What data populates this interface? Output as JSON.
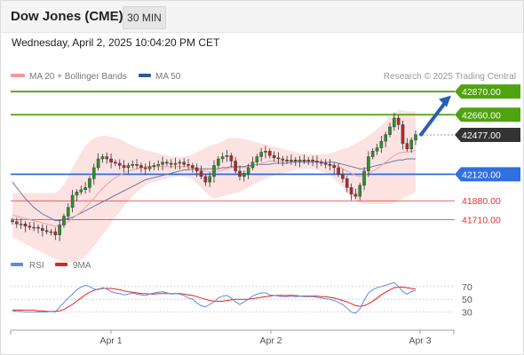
{
  "header": {
    "title": "Dow Jones (CME)",
    "timeframe": "30 MIN"
  },
  "datetime": "Wednesday, April 2, 2025 10:04:20 PM CET",
  "legend": [
    {
      "label": "MA 20 + Bollinger Bands",
      "color": "#f29a9a"
    },
    {
      "label": "MA 50",
      "color": "#2e5b9a"
    }
  ],
  "credit": "Research © 2025 Trading Central",
  "rsi_legend": [
    {
      "label": "RSI",
      "color": "#5b8be0"
    },
    {
      "label": "9MA",
      "color": "#e32222"
    }
  ],
  "colors": {
    "resistance": "#4fa30f",
    "support": "#2f6fe0",
    "support_red": "#e53030",
    "price": "#333333",
    "bull": "#2f8f2f",
    "bear": "#b52a2a",
    "arrow": "#2a5fb0",
    "band": "#fde2e2",
    "ma20": "#f0a0a0",
    "ma50": "#6b78a8"
  },
  "chart_data": [
    {
      "type": "candlestick",
      "title": "",
      "ylim": [
        41560,
        42960
      ],
      "xticks": [
        "Apr 1",
        "Apr 2",
        "Apr 3"
      ],
      "levels": [
        {
          "value": 42870,
          "label": "42870.00",
          "kind": "resistance"
        },
        {
          "value": 42660,
          "label": "42660.00",
          "kind": "resistance"
        },
        {
          "value": 42477,
          "label": "42477.00",
          "kind": "price"
        },
        {
          "value": 42120,
          "label": "42120.00",
          "kind": "support"
        },
        {
          "value": 41880,
          "label": "41880.00",
          "kind": "support_red"
        },
        {
          "value": 41710,
          "label": "41710.00",
          "kind": "support_red"
        }
      ],
      "projection": {
        "from": 42480,
        "to": 42810
      },
      "close": [
        41690,
        41670,
        41670,
        41650,
        41640,
        41640,
        41630,
        41610,
        41600,
        41600,
        41570,
        41660,
        41740,
        41820,
        41930,
        41960,
        41980,
        42000,
        42080,
        42180,
        42260,
        42280,
        42260,
        42230,
        42220,
        42200,
        42180,
        42200,
        42210,
        42200,
        42180,
        42170,
        42190,
        42200,
        42210,
        42230,
        42220,
        42210,
        42220,
        42230,
        42210,
        42200,
        42180,
        42150,
        42100,
        42050,
        42100,
        42200,
        42260,
        42280,
        42290,
        42240,
        42150,
        42100,
        42130,
        42180,
        42230,
        42280,
        42320,
        42330,
        42290,
        42270,
        42260,
        42250,
        42240,
        42250,
        42240,
        42250,
        42240,
        42250,
        42240,
        42230,
        42220,
        42210,
        42200,
        42180,
        42120,
        42080,
        42000,
        41940,
        41920,
        42020,
        42150,
        42280,
        42330,
        42360,
        42420,
        42480,
        42550,
        42630,
        42570,
        42400,
        42350,
        42430,
        42480
      ],
      "ma20": [
        41750,
        41740,
        41730,
        41720,
        41710,
        41700,
        41690,
        41680,
        41670,
        41660,
        41650,
        41660,
        41670,
        41690,
        41720,
        41750,
        41780,
        41820,
        41860,
        41900,
        41950,
        41990,
        42030,
        42060,
        42090,
        42110,
        42130,
        42150,
        42160,
        42170,
        42180,
        42190,
        42190,
        42190,
        42190,
        42190,
        42190,
        42190,
        42190,
        42190,
        42190,
        42190,
        42180,
        42170,
        42160,
        42150,
        42140,
        42140,
        42150,
        42160,
        42170,
        42180,
        42180,
        42180,
        42180,
        42190,
        42200,
        42210,
        42220,
        42230,
        42240,
        42240,
        42240,
        42240,
        42240,
        42240,
        42240,
        42240,
        42240,
        42240,
        42240,
        42240,
        42230,
        42220,
        42210,
        42200,
        42190,
        42170,
        42150,
        42130,
        42110,
        42100,
        42110,
        42130,
        42150,
        42170,
        42200,
        42230,
        42260,
        42290,
        42310,
        42320,
        42320,
        42330,
        42340
      ],
      "bb_upper": [
        41950,
        41950,
        41950,
        41950,
        41950,
        41950,
        41950,
        41950,
        41950,
        41950,
        41950,
        41980,
        42030,
        42100,
        42180,
        42250,
        42320,
        42380,
        42420,
        42450,
        42460,
        42470,
        42470,
        42460,
        42450,
        42440,
        42420,
        42400,
        42380,
        42360,
        42350,
        42340,
        42330,
        42320,
        42310,
        42300,
        42290,
        42280,
        42280,
        42280,
        42280,
        42290,
        42300,
        42320,
        42340,
        42360,
        42380,
        42390,
        42400,
        42420,
        42440,
        42450,
        42450,
        42450,
        42440,
        42430,
        42420,
        42410,
        42400,
        42390,
        42380,
        42370,
        42360,
        42350,
        42340,
        42330,
        42320,
        42310,
        42300,
        42300,
        42300,
        42300,
        42300,
        42300,
        42310,
        42320,
        42340,
        42350,
        42360,
        42380,
        42400,
        42420,
        42440,
        42470,
        42500,
        42530,
        42560,
        42600,
        42640,
        42670,
        42700,
        42700,
        42690,
        42690,
        42690
      ],
      "bb_lower": [
        41550,
        41530,
        41510,
        41490,
        41470,
        41450,
        41430,
        41410,
        41390,
        41370,
        41350,
        41340,
        41330,
        41320,
        41320,
        41330,
        41350,
        41380,
        41420,
        41470,
        41520,
        41570,
        41620,
        41680,
        41730,
        41780,
        41830,
        41880,
        41920,
        41960,
        41990,
        42020,
        42040,
        42050,
        42060,
        42070,
        42080,
        42090,
        42100,
        42100,
        42100,
        42090,
        42070,
        42040,
        42000,
        41960,
        41920,
        41900,
        41910,
        41920,
        41930,
        41940,
        41950,
        41960,
        41980,
        42000,
        42020,
        42040,
        42060,
        42080,
        42100,
        42110,
        42120,
        42130,
        42140,
        42150,
        42160,
        42170,
        42170,
        42170,
        42170,
        42160,
        42150,
        42130,
        42110,
        42080,
        42040,
        42000,
        41960,
        41920,
        41880,
        41860,
        41850,
        41850,
        41850,
        41850,
        41850,
        41850,
        41850,
        41860,
        41880,
        41900,
        41920,
        41940,
        41960
      ],
      "ma50": [
        42050,
        42000,
        41950,
        41900,
        41860,
        41820,
        41790,
        41760,
        41740,
        41720,
        41700,
        41700,
        41710,
        41720,
        41730,
        41750,
        41770,
        41790,
        41810,
        41830,
        41850,
        41870,
        41890,
        41910,
        41930,
        41950,
        41970,
        41990,
        42010,
        42030,
        42050,
        42070,
        42080,
        42090,
        42100,
        42110,
        42120,
        42130,
        42140,
        42150,
        42160,
        42160,
        42170,
        42170,
        42170,
        42170,
        42170,
        42170,
        42170,
        42180,
        42180,
        42190,
        42190,
        42190,
        42190,
        42200,
        42200,
        42210,
        42210,
        42210,
        42210,
        42220,
        42220,
        42220,
        42220,
        42230,
        42230,
        42230,
        42230,
        42230,
        42230,
        42230,
        42230,
        42230,
        42230,
        42230,
        42220,
        42210,
        42200,
        42190,
        42180,
        42170,
        42170,
        42180,
        42190,
        42200,
        42210,
        42220,
        42230,
        42240,
        42250,
        42250,
        42260,
        42260,
        42260
      ]
    },
    {
      "type": "line",
      "title": "",
      "ylim": [
        10,
        85
      ],
      "yticks": [
        "70",
        "50",
        "30"
      ],
      "yticks_values": [
        70,
        50,
        30
      ],
      "series": [
        {
          "name": "RSI",
          "values": [
            32,
            31,
            31,
            30,
            30,
            30,
            30,
            30,
            30,
            31,
            30,
            38,
            45,
            52,
            58,
            65,
            69,
            72,
            70,
            66,
            65,
            68,
            66,
            62,
            60,
            59,
            57,
            58,
            60,
            58,
            57,
            56,
            58,
            60,
            61,
            62,
            60,
            58,
            59,
            58,
            56,
            52,
            50,
            44,
            40,
            38,
            42,
            46,
            52,
            55,
            56,
            52,
            46,
            42,
            46,
            50,
            55,
            58,
            60,
            60,
            57,
            56,
            55,
            54,
            54,
            55,
            54,
            55,
            54,
            54,
            54,
            53,
            52,
            51,
            50,
            48,
            45,
            42,
            36,
            30,
            28,
            35,
            48,
            60,
            65,
            68,
            70,
            72,
            74,
            76,
            70,
            62,
            58,
            62,
            64
          ]
        },
        {
          "name": "9MA",
          "values": [
            33,
            33,
            33,
            33,
            33,
            33,
            32,
            32,
            31,
            31,
            31,
            32,
            34,
            38,
            42,
            47,
            52,
            57,
            61,
            64,
            66,
            67,
            67,
            67,
            66,
            65,
            63,
            62,
            61,
            60,
            59,
            59,
            58,
            58,
            59,
            59,
            59,
            59,
            59,
            59,
            58,
            57,
            56,
            54,
            52,
            50,
            48,
            47,
            47,
            47,
            48,
            49,
            50,
            50,
            50,
            50,
            51,
            52,
            53,
            54,
            55,
            56,
            56,
            56,
            56,
            56,
            56,
            55,
            55,
            55,
            55,
            55,
            54,
            54,
            53,
            52,
            50,
            48,
            46,
            43,
            40,
            39,
            40,
            43,
            47,
            52,
            57,
            61,
            65,
            68,
            69,
            69,
            68,
            67,
            66
          ]
        }
      ]
    }
  ]
}
